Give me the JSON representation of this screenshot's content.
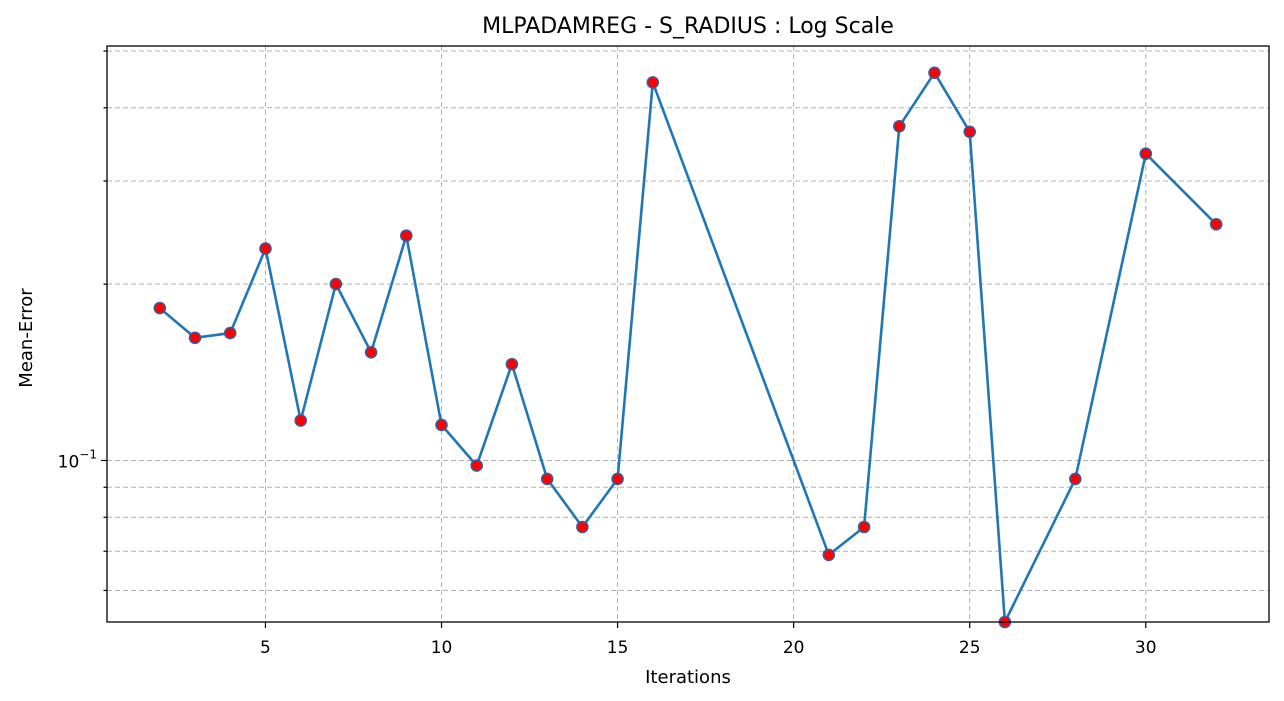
{
  "chart_data": {
    "type": "line",
    "title": "MLPADAMREG - S_RADIUS : Log Scale",
    "xlabel": "Iterations",
    "ylabel": "Mean-Error",
    "yscale": "log",
    "xlim": [
      0.5,
      33.5
    ],
    "ylim": [
      0.053,
      0.51
    ],
    "grid": true,
    "x_ticks": [
      5,
      10,
      15,
      20,
      25,
      30
    ],
    "y_major_ticks": [
      {
        "value": 0.1,
        "base": "10",
        "exponent": "−1"
      }
    ],
    "y_minor_ticks": [
      0.06,
      0.07,
      0.08,
      0.09,
      0.2,
      0.3,
      0.4,
      0.5
    ],
    "line_color": "#1f77b4",
    "marker_face_color": "#ff0000",
    "marker_edge_color": "#3d5a99",
    "series": [
      {
        "x": [
          2,
          3,
          4,
          5,
          6,
          7,
          8,
          9,
          10,
          11,
          12,
          13,
          14,
          15,
          16,
          21,
          22,
          23,
          24,
          25,
          26,
          28,
          30,
          32
        ],
        "y": [
          0.182,
          0.162,
          0.165,
          0.23,
          0.117,
          0.2,
          0.153,
          0.242,
          0.115,
          0.098,
          0.146,
          0.093,
          0.077,
          0.093,
          0.442,
          0.069,
          0.077,
          0.372,
          0.459,
          0.364,
          0.053,
          0.093,
          0.334,
          0.253
        ]
      }
    ]
  }
}
